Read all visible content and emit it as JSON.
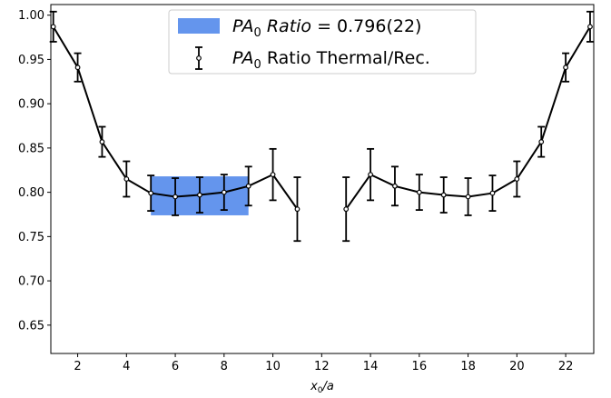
{
  "chart_data": {
    "type": "line",
    "xlabel_main": "x",
    "xlabel_sub": "0",
    "xlabel_rest": "/a",
    "ylabel": "",
    "xlim": [
      0.9,
      23.15
    ],
    "ylim": [
      0.618,
      1.012
    ],
    "x_ticks": [
      2,
      4,
      6,
      8,
      10,
      12,
      14,
      16,
      18,
      20,
      22
    ],
    "y_ticks": [
      0.65,
      0.7,
      0.75,
      0.8,
      0.85,
      0.9,
      0.95,
      1.0
    ],
    "y_tick_labels": [
      "0.65",
      "0.70",
      "0.75",
      "0.80",
      "0.85",
      "0.90",
      "0.95",
      "1.00"
    ],
    "band": {
      "x_range": [
        5,
        9
      ],
      "center": 0.796,
      "error": 0.022,
      "color": "#6495ED",
      "legend_main": "PA",
      "legend_sub": "0",
      "legend_italic": "Ratio",
      "legend_value": " = 0.796(22)"
    },
    "series": [
      {
        "legend_main": "PA",
        "legend_sub": "0",
        "legend_rest": " Ratio Thermal/Rec.",
        "color": "#000000",
        "segments": [
          {
            "x": [
              1,
              2,
              3,
              4,
              5,
              6,
              7,
              8,
              9,
              10,
              11
            ],
            "y": [
              0.987,
              0.941,
              0.857,
              0.815,
              0.799,
              0.795,
              0.797,
              0.8,
              0.807,
              0.82,
              0.781
            ],
            "err": [
              0.017,
              0.016,
              0.017,
              0.02,
              0.02,
              0.021,
              0.02,
              0.02,
              0.022,
              0.029,
              0.036
            ]
          },
          {
            "x": [
              13,
              14,
              15,
              16,
              17,
              18,
              19,
              20,
              21,
              22,
              23
            ],
            "y": [
              0.781,
              0.82,
              0.807,
              0.8,
              0.797,
              0.795,
              0.799,
              0.815,
              0.857,
              0.941,
              0.987
            ],
            "err": [
              0.036,
              0.029,
              0.022,
              0.02,
              0.02,
              0.021,
              0.02,
              0.02,
              0.017,
              0.016,
              0.017
            ]
          }
        ]
      }
    ]
  }
}
